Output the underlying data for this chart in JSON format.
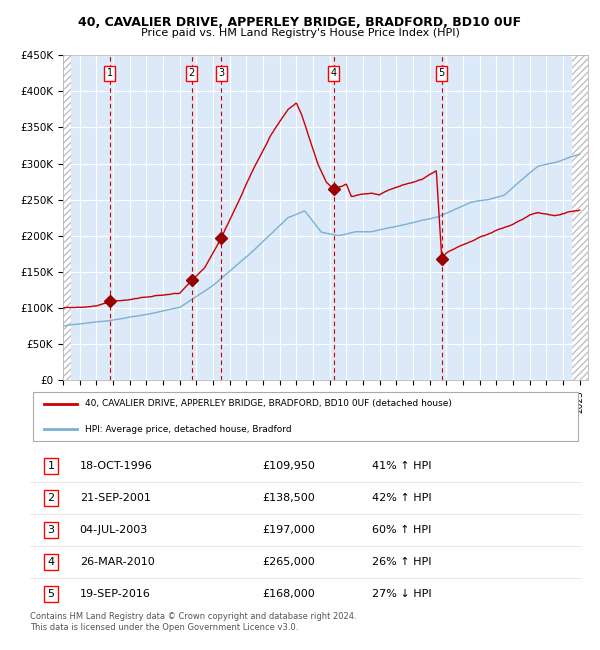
{
  "title": "40, CAVALIER DRIVE, APPERLEY BRIDGE, BRADFORD, BD10 0UF",
  "subtitle": "Price paid vs. HM Land Registry's House Price Index (HPI)",
  "ylim": [
    0,
    450000
  ],
  "yticks": [
    0,
    50000,
    100000,
    150000,
    200000,
    250000,
    300000,
    350000,
    400000,
    450000
  ],
  "ytick_labels": [
    "£0",
    "£50K",
    "£100K",
    "£150K",
    "£200K",
    "£250K",
    "£300K",
    "£350K",
    "£400K",
    "£450K"
  ],
  "xlim_start": 1994.0,
  "xlim_end": 2025.5,
  "xticks": [
    1994,
    1995,
    1996,
    1997,
    1998,
    1999,
    2000,
    2001,
    2002,
    2003,
    2004,
    2005,
    2006,
    2007,
    2008,
    2009,
    2010,
    2011,
    2012,
    2013,
    2014,
    2015,
    2016,
    2017,
    2018,
    2019,
    2020,
    2021,
    2022,
    2023,
    2024,
    2025
  ],
  "background_color": "#ffffff",
  "plot_bg_color": "#dce9f8",
  "grid_color": "#ffffff",
  "red_line_color": "#cc0000",
  "blue_line_color": "#7ab0d4",
  "sale_marker_color": "#990000",
  "dashed_line_color": "#cc0000",
  "sale_points": [
    {
      "year": 1996.8,
      "price": 109950,
      "label": "1"
    },
    {
      "year": 2001.72,
      "price": 138500,
      "label": "2"
    },
    {
      "year": 2003.5,
      "price": 197000,
      "label": "3"
    },
    {
      "year": 2010.23,
      "price": 265000,
      "label": "4"
    },
    {
      "year": 2016.72,
      "price": 168000,
      "label": "5"
    }
  ],
  "legend_red_label": "40, CAVALIER DRIVE, APPERLEY BRIDGE, BRADFORD, BD10 0UF (detached house)",
  "legend_blue_label": "HPI: Average price, detached house, Bradford",
  "table_rows": [
    {
      "num": "1",
      "date": "18-OCT-1996",
      "price": "£109,950",
      "change": "41% ↑ HPI"
    },
    {
      "num": "2",
      "date": "21-SEP-2001",
      "price": "£138,500",
      "change": "42% ↑ HPI"
    },
    {
      "num": "3",
      "date": "04-JUL-2003",
      "price": "£197,000",
      "change": "60% ↑ HPI"
    },
    {
      "num": "4",
      "date": "26-MAR-2010",
      "price": "£265,000",
      "change": "26% ↑ HPI"
    },
    {
      "num": "5",
      "date": "19-SEP-2016",
      "price": "£168,000",
      "change": "27% ↓ HPI"
    }
  ],
  "footer": "Contains HM Land Registry data © Crown copyright and database right 2024.\nThis data is licensed under the Open Government Licence v3.0."
}
